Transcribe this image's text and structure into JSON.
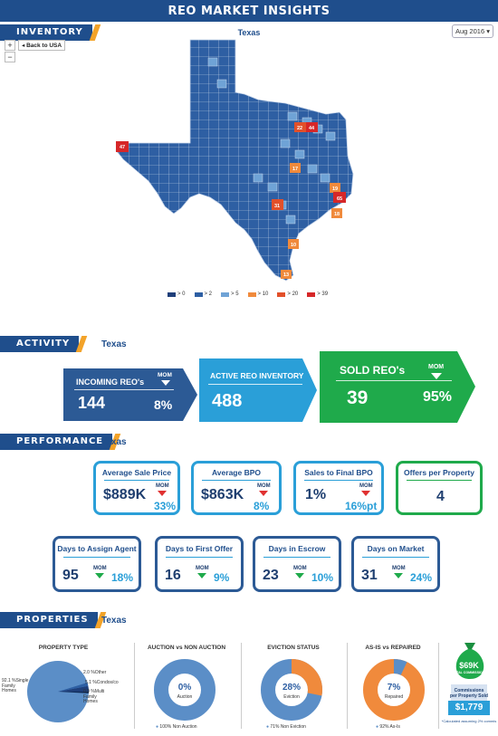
{
  "header": {
    "title": "REO MARKET INSIGHTS"
  },
  "inventory": {
    "tab": "INVENTORY",
    "date_selected": "Aug 2016",
    "zoom_in": "+",
    "zoom_out": "−",
    "back_label": "◂ Back to USA",
    "map_title": "Texas",
    "legend": [
      {
        "label": "> 0",
        "color": "#1f3f7a"
      },
      {
        "label": "> 2",
        "color": "#2e5fa3"
      },
      {
        "label": "> 5",
        "color": "#6fa3d6"
      },
      {
        "label": "> 10",
        "color": "#f08a3c"
      },
      {
        "label": "> 20",
        "color": "#e2502a"
      },
      {
        "label": "> 39",
        "color": "#d62728"
      }
    ],
    "map_labels": [
      "47",
      "22",
      "44",
      "17",
      "31",
      "19",
      "65",
      "18",
      "10",
      "13"
    ]
  },
  "activity": {
    "tab": "ACTIVITY",
    "state": "Texas",
    "incoming": {
      "label": "INCOMING REO's",
      "value": "144",
      "mom_label": "MOM",
      "mom": "8%"
    },
    "active": {
      "label": "ACTIVE REO INVENTORY",
      "value": "488"
    },
    "sold": {
      "label": "SOLD REO's",
      "value": "39",
      "mom_label": "MOM",
      "mom": "95%"
    }
  },
  "performance": {
    "tab": "PERFORMANCE",
    "state": "Texas",
    "row1": [
      {
        "title": "Average Sale Price",
        "value": "$889K",
        "mom_label": "MOM",
        "mom": "33%"
      },
      {
        "title": "Average BPO",
        "value": "$863K",
        "mom_label": "MOM",
        "mom": "8%"
      },
      {
        "title": "Sales to Final BPO",
        "value": "1%",
        "mom_label": "MOM",
        "mom": "16%pt"
      },
      {
        "title": "Offers per Property",
        "value": "4"
      }
    ],
    "row2": [
      {
        "title": "Days to Assign Agent",
        "value": "95",
        "mom_label": "MOM",
        "mom": "18%"
      },
      {
        "title": "Days to First Offer",
        "value": "16",
        "mom_label": "MOM",
        "mom": "9%"
      },
      {
        "title": "Days in Escrow",
        "value": "23",
        "mom_label": "MOM",
        "mom": "10%"
      },
      {
        "title": "Days on Market",
        "value": "31",
        "mom_label": "MOM",
        "mom": "24%"
      }
    ]
  },
  "properties": {
    "tab": "PROPERTIES",
    "state": "Texas",
    "property_type": {
      "title": "PROPERTY TYPE",
      "slices": [
        {
          "label": "92.1 %Single Family Homes",
          "value": 92.1
        },
        {
          "label": "2.0 %Other",
          "value": 2.0
        },
        {
          "label": "5.1 %Condos/Other",
          "value": 5.1
        },
        {
          "label": "0.9 %Multi Family Homes",
          "value": 0.9
        }
      ],
      "label_single": "92.1 %Single",
      "label_single2": "Family",
      "label_single3": "Homes",
      "label_other": "2.0 %Other",
      "label_condo": "5.1 %Condos/co",
      "label_multi": "0.9 %Multi",
      "label_multi2": "Family",
      "label_multi3": "Homes"
    },
    "auction": {
      "title": "AUCTION vs NON AUCTION",
      "center_pct": "0%",
      "center_label": "Auction",
      "legend": "100% Non Auction",
      "value": 0
    },
    "eviction": {
      "title": "EVICTION STATUS",
      "center_pct": "28%",
      "center_label": "Eviction",
      "legend": "71%  Non Eviction",
      "value": 28
    },
    "asis": {
      "title": "AS-IS vs REPAIRED",
      "center_pct": "7%",
      "center_label": "Repaired",
      "legend": "92%  As-Is",
      "value": 7
    },
    "commission": {
      "total": "$69K",
      "total_label": "TOTAL COMMISSION*",
      "per_label1": "Commissions",
      "per_label2": "per Property Sold",
      "per_value": "$1,779",
      "footnote": "*Calculated assuming 2% commis"
    }
  }
}
